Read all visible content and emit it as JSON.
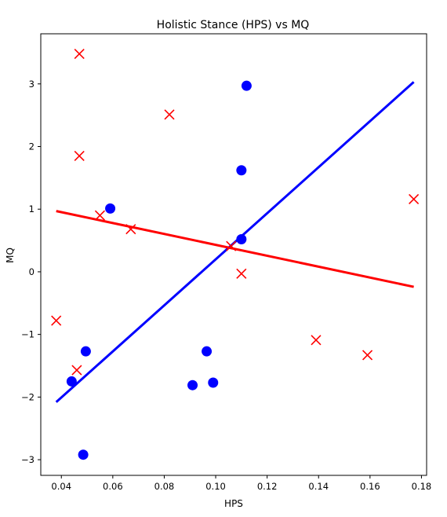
{
  "chart_data": {
    "type": "scatter",
    "title": "Holistic Stance (HPS) vs MQ",
    "xlabel": "HPS",
    "ylabel": "MQ",
    "xlim": [
      0.032,
      0.182
    ],
    "ylim": [
      -3.25,
      3.8
    ],
    "x_ticks": [
      0.04,
      0.06,
      0.08,
      0.1,
      0.12,
      0.14,
      0.16,
      0.18
    ],
    "x_tick_labels": [
      "0.04",
      "0.06",
      "0.08",
      "0.10",
      "0.12",
      "0.14",
      "0.16",
      "0.18"
    ],
    "y_ticks": [
      -3,
      -2,
      -1,
      0,
      1,
      2,
      3
    ],
    "y_tick_labels": [
      "−3",
      "−2",
      "−1",
      "0",
      "1",
      "2",
      "3"
    ],
    "grid": false,
    "series": [
      {
        "marker": "circle",
        "color": "#0000ff",
        "points": [
          [
            0.112,
            2.97
          ],
          [
            0.11,
            1.62
          ],
          [
            0.059,
            1.01
          ],
          [
            0.11,
            0.52
          ],
          [
            0.0495,
            -1.27
          ],
          [
            0.0965,
            -1.27
          ],
          [
            0.044,
            -1.75
          ],
          [
            0.091,
            -1.81
          ],
          [
            0.099,
            -1.77
          ],
          [
            0.0485,
            -2.92
          ]
        ],
        "fit_line": [
          [
            0.038,
            -2.08
          ],
          [
            0.177,
            3.03
          ]
        ]
      },
      {
        "marker": "x",
        "color": "#ff0000",
        "points": [
          [
            0.047,
            3.48
          ],
          [
            0.082,
            2.51
          ],
          [
            0.047,
            1.85
          ],
          [
            0.177,
            1.16
          ],
          [
            0.055,
            0.9
          ],
          [
            0.067,
            0.68
          ],
          [
            0.106,
            0.41
          ],
          [
            0.11,
            -0.03
          ],
          [
            0.038,
            -0.78
          ],
          [
            0.139,
            -1.09
          ],
          [
            0.046,
            -1.57
          ],
          [
            0.159,
            -1.33
          ]
        ],
        "fit_line": [
          [
            0.038,
            0.97
          ],
          [
            0.177,
            -0.24
          ]
        ]
      }
    ]
  }
}
